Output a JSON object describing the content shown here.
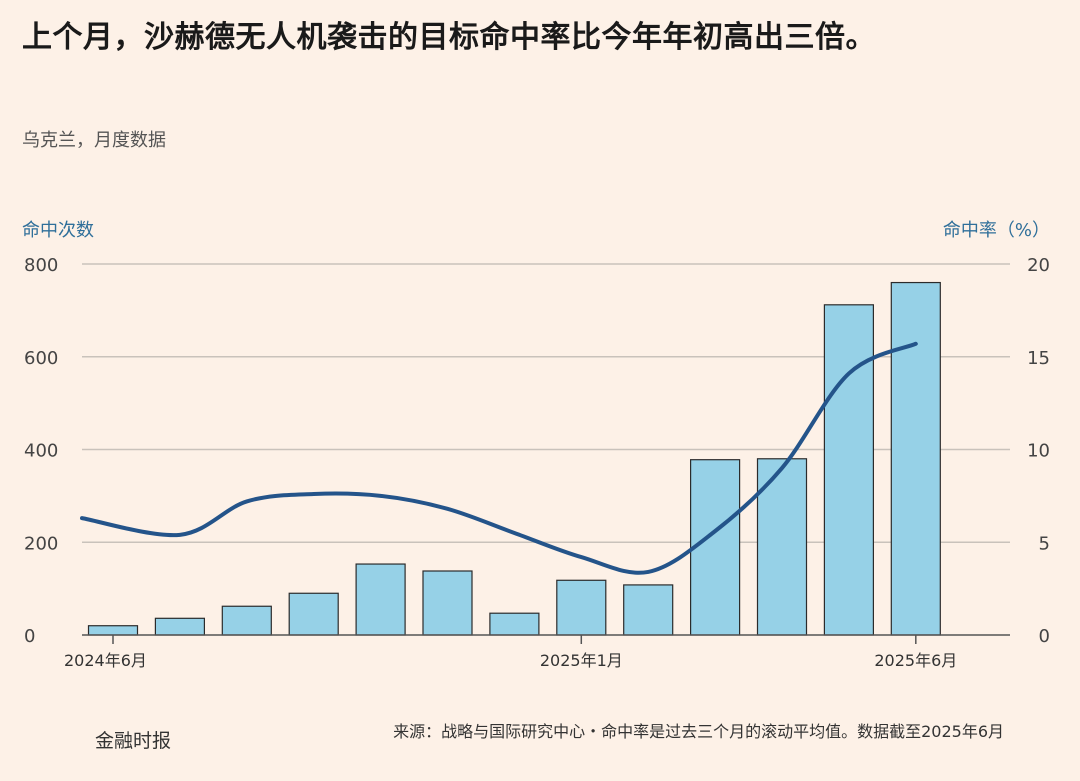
{
  "title": "上个月，沙赫德无人机袭击的目标命中率比今年年初高出三倍。",
  "subtitle": "乌克兰，月度数据",
  "footer": {
    "brand": "金融时报",
    "source": "来源：战略与国际研究中心・命中率是过去三个月的滚动平均值。数据截至2025年6月"
  },
  "colors": {
    "bar_fill": "#96d1e7",
    "bar_stroke": "#2b2b2b",
    "line": "#24548a",
    "grid": "#c9c2bb",
    "axis_title": "#2f6f9a"
  },
  "chart_data": {
    "type": "bar+line",
    "left_axis_title": "命中次数",
    "right_axis_title": "命中率（%）",
    "left_ylim": [
      0,
      800
    ],
    "right_ylim": [
      0,
      20
    ],
    "left_ticks": [
      "0",
      "200",
      "400",
      "600",
      "800"
    ],
    "right_ticks": [
      "0",
      "5",
      "10",
      "15",
      "20"
    ],
    "x_ticks": [
      {
        "label": "2024年6月",
        "index": 0
      },
      {
        "label": "2025年1月",
        "index": 7
      },
      {
        "label": "2025年6月",
        "index": 12
      }
    ],
    "months": [
      "2024-06",
      "2024-07",
      "2024-08",
      "2024-09",
      "2024-10",
      "2024-11",
      "2024-12",
      "2025-01",
      "2025-02",
      "2025-03",
      "2025-04",
      "2025-05",
      "2025-06"
    ],
    "bar_values": [
      20,
      36,
      62,
      90,
      153,
      138,
      47,
      118,
      108,
      378,
      380,
      712,
      760
    ],
    "line_points": [
      {
        "x": "2024-06",
        "y": 6.3
      },
      {
        "x": "2024-07",
        "y": 5.4
      },
      {
        "x": "2024-08",
        "y": 7.2
      },
      {
        "x": "2024-09",
        "y": 7.6
      },
      {
        "x": "2024-10",
        "y": 7.5
      },
      {
        "x": "2024-11",
        "y": 6.8
      },
      {
        "x": "2024-12",
        "y": 5.5
      },
      {
        "x": "2025-01",
        "y": 4.2
      },
      {
        "x": "2025-02",
        "y": 3.4
      },
      {
        "x": "2025-03",
        "y": 5.6
      },
      {
        "x": "2025-04",
        "y": 9.0
      },
      {
        "x": "2025-05",
        "y": 14.1
      },
      {
        "x": "2025-06",
        "y": 15.7
      }
    ],
    "grid": true
  }
}
